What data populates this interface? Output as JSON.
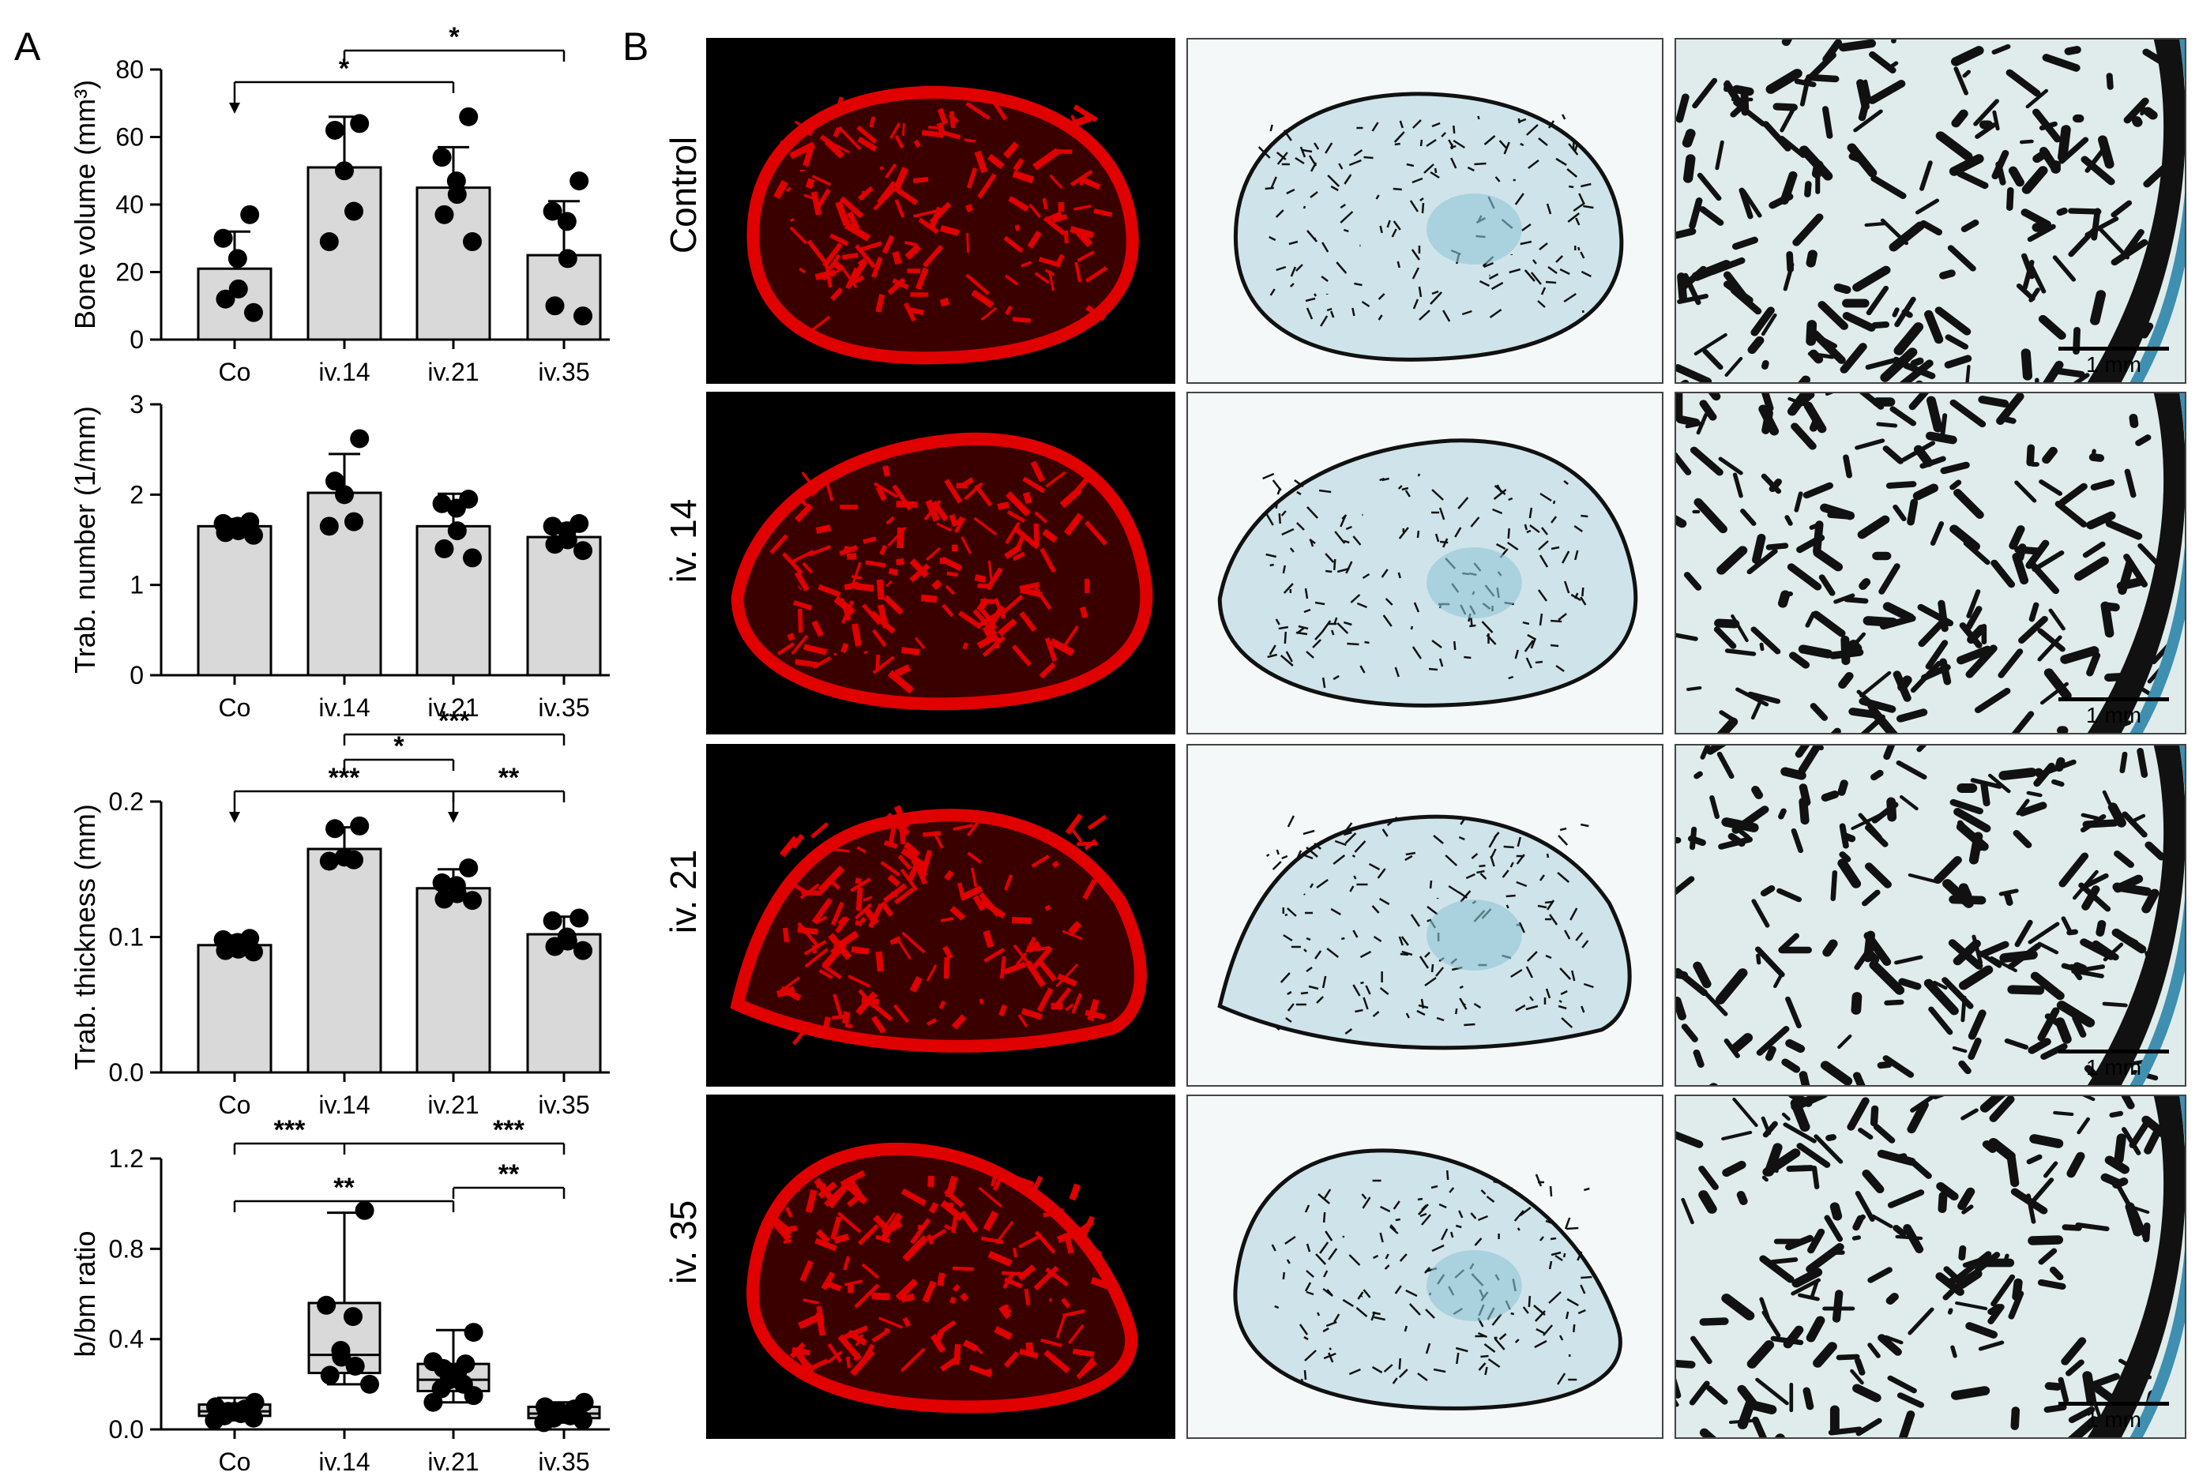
{
  "panel_labels": {
    "a": "A",
    "b": "B"
  },
  "colors": {
    "bar_fill": "#d9d9d9",
    "bone_red": "#e00000",
    "stain_blue": "#8fc6d6",
    "stain_dark": "#111111",
    "background": "#ffffff"
  },
  "chart_data": [
    {
      "type": "bar",
      "title": "",
      "ylabel": "Bone volume (mm³)",
      "categories": [
        "Co",
        "iv.14",
        "iv.21",
        "iv.35"
      ],
      "ylim": [
        0,
        80
      ],
      "yticks": [
        "0",
        "20",
        "40",
        "60",
        "80"
      ],
      "tick_values": [
        0,
        20,
        40,
        60,
        80
      ],
      "values": [
        21,
        51,
        45,
        25
      ],
      "sd": [
        11,
        15,
        12,
        16
      ],
      "points": [
        [
          37,
          30,
          24,
          15,
          12,
          8
        ],
        [
          64,
          62,
          50,
          38,
          29
        ],
        [
          66,
          54,
          47,
          43,
          37,
          29
        ],
        [
          47,
          38,
          35,
          24,
          10,
          7
        ]
      ],
      "significance": [
        {
          "from": 0,
          "to": 2,
          "label": "*",
          "level": 1,
          "arrow_from": true
        },
        {
          "from": 1,
          "to": 3,
          "label": "*",
          "level": 2,
          "arrow_from": false
        }
      ]
    },
    {
      "type": "bar",
      "title": "",
      "ylabel": "Trab. number (1/mm)",
      "categories": [
        "Co",
        "iv.14",
        "iv.21",
        "iv.35"
      ],
      "ylim": [
        0,
        3
      ],
      "yticks": [
        "0",
        "1",
        "2",
        "3"
      ],
      "tick_values": [
        0,
        1,
        2,
        3
      ],
      "values": [
        1.65,
        2.02,
        1.65,
        1.53
      ],
      "sd": [
        0.08,
        0.43,
        0.36,
        0.15
      ],
      "points": [
        [
          1.7,
          1.68,
          1.65,
          1.6,
          1.58,
          1.55
        ],
        [
          2.62,
          2.15,
          2.0,
          1.7,
          1.65
        ],
        [
          1.95,
          1.9,
          1.85,
          1.6,
          1.4,
          1.3
        ],
        [
          1.68,
          1.65,
          1.6,
          1.5,
          1.45,
          1.38
        ]
      ],
      "significance": []
    },
    {
      "type": "bar",
      "title": "",
      "ylabel": "Trab. thickness (mm)",
      "categories": [
        "Co",
        "iv.14",
        "iv.21",
        "iv.35"
      ],
      "ylim": [
        0,
        0.2
      ],
      "yticks": [
        "0.0",
        "0.1",
        "0.2"
      ],
      "tick_values": [
        0,
        0.1,
        0.2
      ],
      "values": [
        0.094,
        0.165,
        0.136,
        0.102
      ],
      "sd": [
        0.007,
        0.016,
        0.014,
        0.013
      ],
      "points": [
        [
          0.099,
          0.098,
          0.096,
          0.091,
          0.09,
          0.089
        ],
        [
          0.182,
          0.18,
          0.159,
          0.157,
          0.156
        ],
        [
          0.151,
          0.14,
          0.138,
          0.132,
          0.128,
          0.127
        ],
        [
          0.114,
          0.112,
          0.1,
          0.097,
          0.093,
          0.09
        ]
      ],
      "significance": [
        {
          "from": 0,
          "to": 2,
          "label": "***",
          "level": 1,
          "arrow_from": true
        },
        {
          "from": 2,
          "to": 3,
          "label": "**",
          "level": 1,
          "arrow_from": true
        },
        {
          "from": 1,
          "to": 2,
          "label": "*",
          "level": 2,
          "arrow_from": false
        },
        {
          "from": 1,
          "to": 3,
          "label": "***",
          "level": 3,
          "arrow_from": false
        }
      ]
    },
    {
      "type": "box",
      "title": "",
      "ylabel": "b/bm ratio",
      "categories": [
        "Co",
        "iv.14",
        "iv.21",
        "iv.35"
      ],
      "ylim": [
        0,
        1.2
      ],
      "yticks": [
        "0.0",
        "0.4",
        "0.8",
        "1.2"
      ],
      "tick_values": [
        0,
        0.4,
        0.8,
        1.2
      ],
      "boxes": [
        {
          "min": 0.04,
          "q1": 0.06,
          "median": 0.08,
          "q3": 0.11,
          "max": 0.14
        },
        {
          "min": 0.2,
          "q1": 0.25,
          "median": 0.33,
          "q3": 0.56,
          "max": 0.96
        },
        {
          "min": 0.12,
          "q1": 0.17,
          "median": 0.22,
          "q3": 0.29,
          "max": 0.44
        },
        {
          "min": 0.03,
          "q1": 0.05,
          "median": 0.07,
          "q3": 0.1,
          "max": 0.12
        }
      ],
      "points": [
        [
          0.12,
          0.1,
          0.09,
          0.08,
          0.08,
          0.07,
          0.06,
          0.05,
          0.04
        ],
        [
          0.97,
          0.55,
          0.5,
          0.35,
          0.32,
          0.28,
          0.24,
          0.2
        ],
        [
          0.43,
          0.3,
          0.29,
          0.27,
          0.25,
          0.23,
          0.22,
          0.2,
          0.18,
          0.15,
          0.12
        ],
        [
          0.12,
          0.1,
          0.09,
          0.08,
          0.07,
          0.06,
          0.05,
          0.04,
          0.03
        ]
      ],
      "significance": [
        {
          "from": 0,
          "to": 2,
          "label": "**",
          "level": 1,
          "arrow_from": false
        },
        {
          "from": 2,
          "to": 3,
          "label": "**",
          "level": 0,
          "arrow_from": false
        },
        {
          "from": 0,
          "to": 3,
          "label": "***",
          "level": 2,
          "arrow_from": false,
          "label_pos": [
            0.5,
            2.5
          ]
        }
      ]
    }
  ],
  "panel_b": {
    "row_labels": [
      "Control",
      "iv. 14",
      "iv. 21",
      "iv. 35"
    ],
    "scale_label": "1 mm"
  }
}
